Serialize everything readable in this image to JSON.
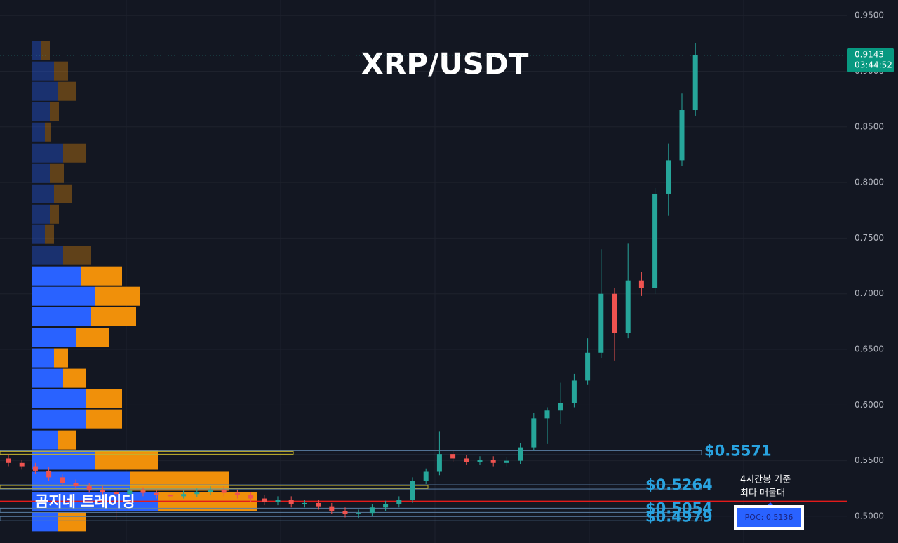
{
  "chart_data": {
    "type": "candlestick",
    "title": "XRP/USDT",
    "watermark": "곰지네 트레이딩",
    "ylim": [
      0.476,
      0.964
    ],
    "yticks": [
      {
        "value": 0.5,
        "label": "0.5000"
      },
      {
        "value": 0.55,
        "label": "0.5500"
      },
      {
        "value": 0.6,
        "label": "0.6000"
      },
      {
        "value": 0.65,
        "label": "0.6500"
      },
      {
        "value": 0.7,
        "label": "0.7000"
      },
      {
        "value": 0.75,
        "label": "0.7500"
      },
      {
        "value": 0.8,
        "label": "0.8000"
      },
      {
        "value": 0.85,
        "label": "0.8500"
      },
      {
        "value": 0.9,
        "label": "0.9000"
      },
      {
        "value": 0.95,
        "label": "0.9500"
      }
    ],
    "grid": true,
    "up_color": "#26a69a",
    "down_color": "#ef5350",
    "candles": {
      "open": [
        0.552,
        0.548,
        0.545,
        0.541,
        0.535,
        0.53,
        0.527,
        0.524,
        0.522,
        0.52,
        0.523,
        0.521,
        0.519,
        0.518,
        0.52,
        0.522,
        0.524,
        0.521,
        0.519,
        0.516,
        0.513,
        0.515,
        0.511,
        0.512,
        0.509,
        0.505,
        0.502,
        0.503,
        0.508,
        0.511,
        0.515,
        0.532,
        0.54,
        0.556,
        0.552,
        0.549,
        0.551,
        0.548,
        0.55,
        0.562,
        0.588,
        0.595,
        0.602,
        0.622,
        0.647,
        0.7,
        0.665,
        0.712,
        0.705,
        0.79,
        0.82,
        0.865
      ],
      "high": [
        0.556,
        0.551,
        0.548,
        0.544,
        0.538,
        0.533,
        0.53,
        0.527,
        0.525,
        0.526,
        0.526,
        0.524,
        0.522,
        0.523,
        0.525,
        0.527,
        0.527,
        0.524,
        0.522,
        0.519,
        0.518,
        0.518,
        0.515,
        0.515,
        0.512,
        0.508,
        0.506,
        0.511,
        0.514,
        0.518,
        0.535,
        0.543,
        0.576,
        0.559,
        0.555,
        0.554,
        0.554,
        0.553,
        0.566,
        0.593,
        0.598,
        0.62,
        0.628,
        0.66,
        0.74,
        0.705,
        0.745,
        0.72,
        0.795,
        0.835,
        0.88,
        0.925
      ],
      "low": [
        0.545,
        0.542,
        0.538,
        0.532,
        0.527,
        0.524,
        0.521,
        0.519,
        0.497,
        0.517,
        0.518,
        0.516,
        0.515,
        0.516,
        0.517,
        0.519,
        0.518,
        0.516,
        0.513,
        0.51,
        0.51,
        0.508,
        0.508,
        0.506,
        0.502,
        0.499,
        0.498,
        0.5,
        0.505,
        0.508,
        0.512,
        0.529,
        0.537,
        0.549,
        0.546,
        0.546,
        0.545,
        0.545,
        0.547,
        0.559,
        0.565,
        0.583,
        0.598,
        0.618,
        0.642,
        0.64,
        0.66,
        0.698,
        0.7,
        0.77,
        0.815,
        0.86
      ],
      "close": [
        0.548,
        0.545,
        0.541,
        0.535,
        0.53,
        0.527,
        0.524,
        0.522,
        0.52,
        0.523,
        0.521,
        0.519,
        0.518,
        0.52,
        0.522,
        0.524,
        0.521,
        0.519,
        0.516,
        0.513,
        0.515,
        0.511,
        0.512,
        0.509,
        0.505,
        0.502,
        0.503,
        0.508,
        0.511,
        0.515,
        0.532,
        0.54,
        0.556,
        0.552,
        0.549,
        0.551,
        0.548,
        0.55,
        0.562,
        0.588,
        0.595,
        0.602,
        0.622,
        0.647,
        0.7,
        0.665,
        0.712,
        0.705,
        0.79,
        0.82,
        0.865,
        0.9143
      ]
    },
    "last_price": {
      "value": 0.9143,
      "label": "0.9143"
    },
    "countdown": "03:44:52",
    "profile": {
      "buy_color": "#2962ff",
      "sell_color": "#f0900a",
      "value_area": [
        0.4863,
        0.7168
      ],
      "prices": [
        0.9185,
        0.9002,
        0.8819,
        0.8636,
        0.8453,
        0.8264,
        0.8081,
        0.7898,
        0.7715,
        0.7533,
        0.7344,
        0.7161,
        0.6978,
        0.6795,
        0.6606,
        0.6424,
        0.6241,
        0.6058,
        0.5875,
        0.5686,
        0.5504,
        0.5315,
        0.5132,
        0.495
      ],
      "buy": [
        13,
        32,
        38,
        26,
        19,
        45,
        26,
        32,
        26,
        19,
        45,
        71,
        90,
        84,
        64,
        32,
        45,
        77,
        77,
        38,
        90,
        141,
        180,
        38
      ],
      "sell": [
        13,
        20,
        26,
        13,
        8,
        33,
        20,
        26,
        13,
        13,
        39,
        58,
        65,
        65,
        46,
        20,
        33,
        52,
        52,
        26,
        90,
        141,
        141,
        39
      ]
    },
    "levels": [
      {
        "value": 0.5571,
        "label": "$0.5571"
      },
      {
        "value": 0.5264,
        "label": "$0.5264"
      },
      {
        "value": 0.5054,
        "label": "$0.5054"
      },
      {
        "value": 0.4979,
        "label": "$0.4979"
      }
    ],
    "poc": {
      "value": 0.5136,
      "label": "POC: 0.5136"
    },
    "annotation": [
      "4시간봉 기준",
      "최다 매물대"
    ]
  }
}
